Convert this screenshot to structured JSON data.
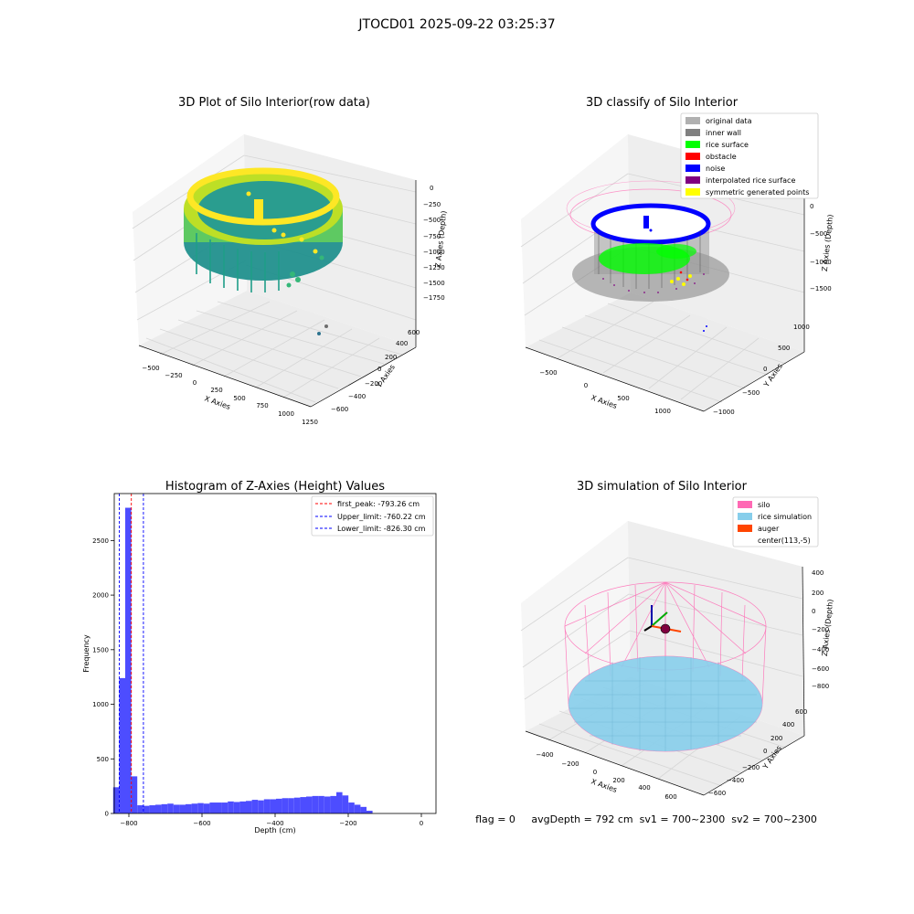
{
  "figure_title": "JTOCD01 2025-09-22 03:25:37",
  "status_text": "flag = 0     avgDepth = 792 cm  sv1 = 700~2300  sv2 = 700~2300",
  "colors": {
    "hist_bar": "#4d4dff",
    "first_peak": "#ff0000",
    "limits": "#0000ff",
    "silo": "#ff69b4",
    "rice": "#87ceeb",
    "auger": "#ff4500",
    "original": "#b0b0b0",
    "inner_wall": "#808080",
    "rice_surface": "#00ff00",
    "obstacle": "#ff0000",
    "noise": "#0000ff",
    "interp": "#800080",
    "sym": "#ffff00"
  },
  "chart_data": [
    {
      "type": "scatter",
      "projection": "3d",
      "title": "3D Plot of Silo Interior(row data)",
      "xlabel": "X Axies",
      "ylabel": "Y Axies",
      "zlabel": "Z Axies (Depth)",
      "x_ticks": [
        "−500",
        "−250",
        "0",
        "250",
        "500",
        "750",
        "1000",
        "1250"
      ],
      "y_ticks": [
        "−600",
        "−400",
        "−200",
        "0",
        "200",
        "400",
        "600"
      ],
      "z_ticks": [
        "0",
        "−250",
        "−500",
        "−750",
        "−1000",
        "−1250",
        "−1500",
        "−1750"
      ],
      "colormap": "viridis (by depth)",
      "grid": true
    },
    {
      "type": "scatter",
      "projection": "3d",
      "title": "3D classify of Silo Interior",
      "xlabel": "X Axies",
      "ylabel": "Y Axies",
      "zlabel": "Z Axies (Depth)",
      "x_ticks": [
        "−500",
        "0",
        "500",
        "1000"
      ],
      "y_ticks": [
        "−1000",
        "−500",
        "0",
        "500",
        "1000"
      ],
      "z_ticks": [
        "0",
        "−500",
        "−1000",
        "−1500"
      ],
      "legend_position": "top-right",
      "legend": [
        {
          "label": "original data",
          "color": "#b0b0b0"
        },
        {
          "label": "inner wall",
          "color": "#808080"
        },
        {
          "label": "rice surface",
          "color": "#00ff00"
        },
        {
          "label": "obstacle",
          "color": "#ff0000"
        },
        {
          "label": "noise",
          "color": "#0000ff"
        },
        {
          "label": "interpolated rice surface",
          "color": "#800080"
        },
        {
          "label": "symmetric generated points",
          "color": "#ffff00"
        }
      ],
      "grid": true
    },
    {
      "type": "bar",
      "subtype": "histogram",
      "title": "Histogram of Z-Axies (Height) Values",
      "xlabel": "Depth (cm)",
      "ylabel": "Frequency",
      "xlim": [
        -840,
        40
      ],
      "ylim": [
        0,
        2930
      ],
      "x_ticks": [
        -800,
        -600,
        -400,
        -200,
        0
      ],
      "y_ticks": [
        0,
        500,
        1000,
        1500,
        2000,
        2500
      ],
      "bin_width": 16.5,
      "bin_start": -843,
      "counts": [
        240,
        1240,
        2800,
        340,
        75,
        70,
        75,
        80,
        85,
        90,
        80,
        80,
        85,
        90,
        95,
        90,
        100,
        100,
        100,
        110,
        105,
        110,
        115,
        125,
        120,
        130,
        130,
        135,
        140,
        140,
        145,
        150,
        155,
        160,
        160,
        155,
        160,
        195,
        165,
        100,
        80,
        60,
        25
      ],
      "vlines": [
        {
          "label": "first_peak: -793.26 cm",
          "x": -793.26,
          "color": "#ff0000"
        },
        {
          "label": "Upper_limit: -760.22 cm",
          "x": -760.22,
          "color": "#0000ff"
        },
        {
          "label": "Lower_limit: -826.30 cm",
          "x": -826.3,
          "color": "#0000ff"
        }
      ],
      "legend_position": "top-right",
      "grid": false
    },
    {
      "type": "scatter",
      "projection": "3d",
      "title": "3D simulation of Silo Interior",
      "xlabel": "X Axies",
      "ylabel": "Y Axies",
      "zlabel": "Z Axies (Depth)",
      "x_ticks": [
        "−400",
        "−200",
        "0",
        "200",
        "400",
        "600"
      ],
      "y_ticks": [
        "−600",
        "−400",
        "−200",
        "0",
        "200",
        "400",
        "600"
      ],
      "z_ticks": [
        "400",
        "200",
        "0",
        "−200",
        "−400",
        "−600",
        "−800"
      ],
      "legend_position": "top-right",
      "legend": [
        {
          "label": "silo",
          "color": "#ff69b4"
        },
        {
          "label": "rice simulation",
          "color": "#87ceeb"
        },
        {
          "label": "auger",
          "color": "#ff4500"
        },
        {
          "label": "center(113,-5)",
          "color": ""
        }
      ],
      "grid": true
    }
  ]
}
